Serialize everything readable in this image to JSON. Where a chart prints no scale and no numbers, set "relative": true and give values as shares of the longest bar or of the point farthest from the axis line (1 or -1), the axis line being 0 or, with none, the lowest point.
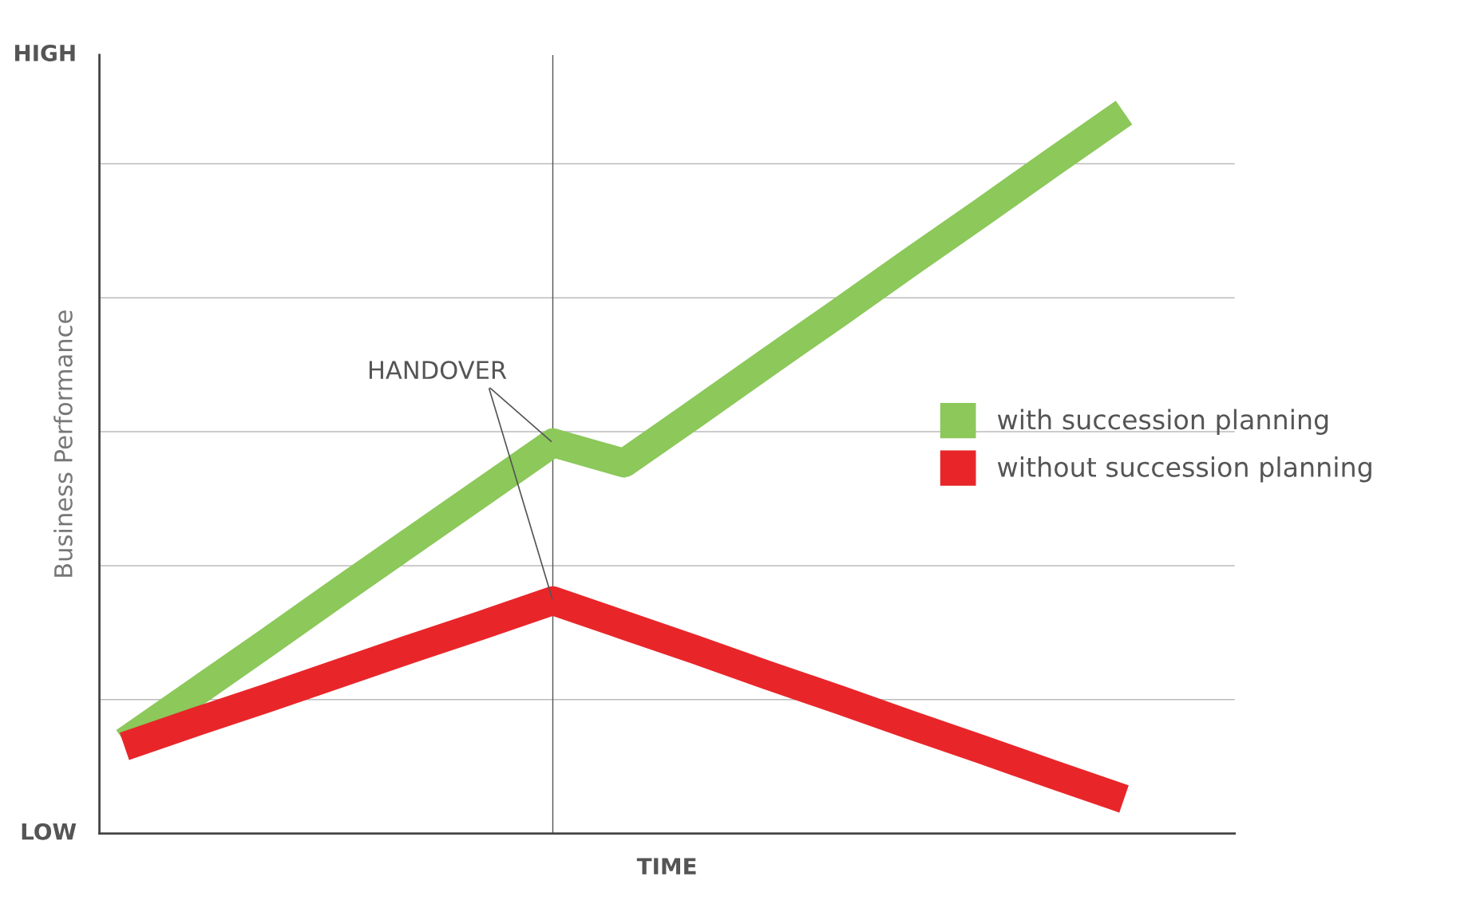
{
  "chart_data": {
    "type": "line",
    "relative": true,
    "xlabel": "TIME",
    "ylabel": "Business Performance",
    "categories": [
      null,
      null,
      null,
      null,
      null,
      null,
      null,
      null,
      null,
      null,
      null,
      null,
      null,
      null,
      null
    ],
    "grid": "y",
    "legend": "right",
    "marker": "none",
    "line_style": "solid",
    "series": [
      {
        "name": "with succession planning",
        "color": "#8cc85a",
        "values": [
          0.127,
          0.196,
          0.265,
          0.335,
          0.404,
          0.473,
          0.542,
          0.514,
          0.583,
          0.653,
          0.722,
          0.792,
          0.861,
          0.931,
          1.0
        ]
      },
      {
        "name": "without succession planning",
        "color": "#e8262a",
        "values": [
          0.121,
          0.155,
          0.188,
          0.222,
          0.256,
          0.289,
          0.323,
          0.289,
          0.255,
          0.22,
          0.186,
          0.151,
          0.117,
          0.082,
          0.048
        ]
      }
    ],
    "annotations": [
      "HIGH",
      "LOW",
      "HANDOVER"
    ]
  }
}
